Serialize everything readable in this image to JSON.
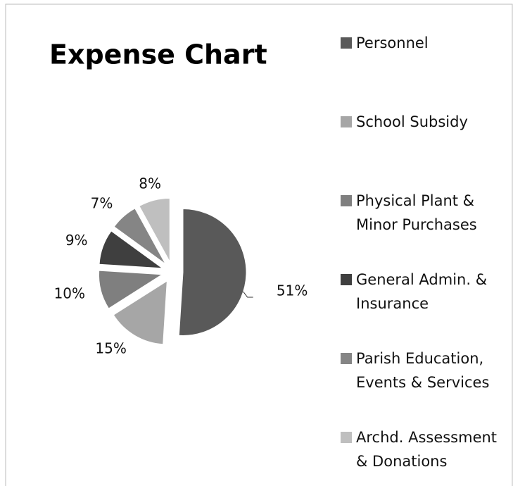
{
  "chart_data": {
    "type": "pie",
    "title": "Expense Chart",
    "categories": [
      "Personnel",
      "School Subsidy",
      "Physical Plant & Minor Purchases",
      "General Admin. & Insurance",
      "Parish Education, Events & Services",
      "Archd. Assessment & Donations"
    ],
    "values": [
      51,
      15,
      10,
      9,
      7,
      8
    ],
    "value_labels": [
      "51%",
      "15%",
      "10%",
      "9%",
      "7%",
      "8%"
    ],
    "colors": [
      "#595959",
      "#a6a6a6",
      "#7f7f7f",
      "#3f3f3f",
      "#858585",
      "#bfbfbf"
    ]
  }
}
